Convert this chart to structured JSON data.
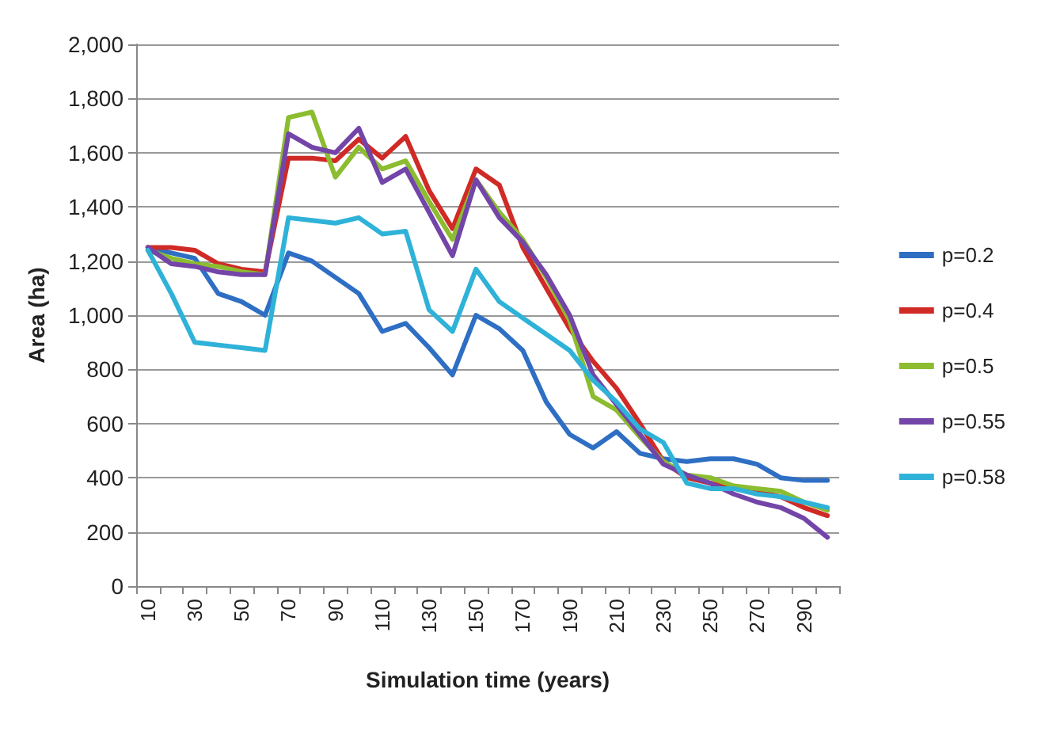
{
  "chart_data": {
    "type": "line",
    "xlabel": "Simulation time (years)",
    "ylabel": "Area (ha)",
    "categories": [
      "10",
      null,
      "30",
      null,
      "50",
      null,
      "70",
      null,
      "90",
      null,
      "110",
      null,
      "130",
      null,
      "150",
      null,
      "170",
      null,
      "190",
      null,
      "210",
      null,
      "230",
      null,
      "250",
      null,
      "270",
      null,
      "290",
      null
    ],
    "ylim": [
      0,
      2000
    ],
    "yticks": [
      {
        "value": 0,
        "label": "0"
      },
      {
        "value": 200,
        "label": "200"
      },
      {
        "value": 400,
        "label": "400"
      },
      {
        "value": 600,
        "label": "600"
      },
      {
        "value": 800,
        "label": "800"
      },
      {
        "value": 1000,
        "label": "1,000"
      },
      {
        "value": 1200,
        "label": "1,200"
      },
      {
        "value": 1400,
        "label": "1,400"
      },
      {
        "value": 1600,
        "label": "1,600"
      },
      {
        "value": 1800,
        "label": "1,800"
      },
      {
        "value": 2000,
        "label": "2,000"
      }
    ],
    "grid": "y",
    "legend": "right",
    "marker": "none",
    "line_style": "solid",
    "series": [
      {
        "name": "p=0.2",
        "color": "#2e6fc4",
        "values": [
          1250,
          1230,
          1210,
          1080,
          1050,
          1000,
          1230,
          1200,
          1140,
          1080,
          940,
          970,
          880,
          780,
          1000,
          950,
          870,
          680,
          560,
          510,
          570,
          490,
          470,
          460,
          470,
          470,
          450,
          400,
          390,
          390
        ]
      },
      {
        "name": "p=0.4",
        "color": "#d02a26",
        "values": [
          1250,
          1250,
          1240,
          1190,
          1170,
          1160,
          1580,
          1580,
          1570,
          1650,
          1580,
          1660,
          1460,
          1320,
          1540,
          1480,
          1250,
          1100,
          950,
          830,
          730,
          600,
          460,
          400,
          380,
          360,
          350,
          330,
          290,
          260
        ]
      },
      {
        "name": "p=0.5",
        "color": "#8cbc2f",
        "values": [
          1240,
          1210,
          1190,
          1180,
          1160,
          1150,
          1730,
          1750,
          1510,
          1620,
          1540,
          1570,
          1420,
          1280,
          1500,
          1380,
          1280,
          1140,
          980,
          700,
          650,
          550,
          460,
          410,
          400,
          370,
          360,
          350,
          310,
          280
        ]
      },
      {
        "name": "p=0.55",
        "color": "#7345a8",
        "values": [
          1250,
          1190,
          1180,
          1160,
          1150,
          1150,
          1670,
          1620,
          1600,
          1690,
          1490,
          1540,
          1380,
          1220,
          1500,
          1360,
          1270,
          1150,
          1000,
          780,
          670,
          560,
          450,
          410,
          380,
          340,
          310,
          290,
          250,
          180
        ]
      },
      {
        "name": "p=0.58",
        "color": "#2fb2d8",
        "values": [
          1240,
          1080,
          900,
          890,
          880,
          870,
          1360,
          1350,
          1340,
          1360,
          1300,
          1310,
          1020,
          940,
          1170,
          1050,
          990,
          930,
          870,
          760,
          680,
          580,
          530,
          380,
          360,
          360,
          340,
          330,
          310,
          290
        ]
      }
    ]
  }
}
